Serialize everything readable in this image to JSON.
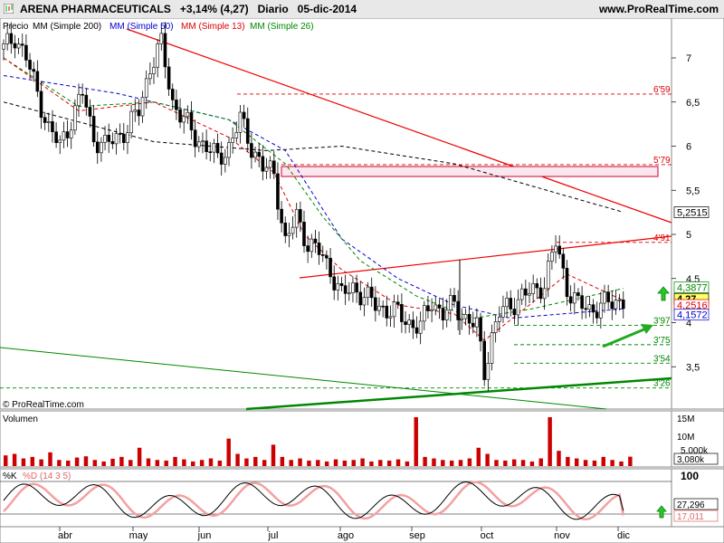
{
  "header": {
    "ticker": "ARENA PHARMACEUTICALS",
    "change": "+3,14% (4,27)",
    "period": "Diario",
    "date": "05-dic-2014",
    "site": "www.ProRealTime.com"
  },
  "price_panel": {
    "legend": [
      {
        "label": "Precio",
        "color": "#000000"
      },
      {
        "label": "MM (Simple 200)",
        "color": "#000000"
      },
      {
        "label": "MM (Simple 50)",
        "color": "#0000cc"
      },
      {
        "label": "MM (Simple 13)",
        "color": "#dd0000"
      },
      {
        "label": "MM (Simple 26)",
        "color": "#008800"
      }
    ],
    "copyright": "© ProRealTime.com",
    "y_ticks": [
      "7",
      "6,5",
      "6",
      "5,5",
      "5",
      "4,5",
      "4",
      "3,5"
    ],
    "levels": [
      {
        "label": "6'59",
        "value": 6.59
      },
      {
        "label": "5'79",
        "value": 5.79
      },
      {
        "label": "4'91",
        "value": 4.91
      },
      {
        "label": "3'97",
        "value": 3.97
      },
      {
        "label": "3'75",
        "value": 3.75
      },
      {
        "label": "3'54",
        "value": 3.54
      },
      {
        "label": "3'26",
        "value": 3.26
      }
    ],
    "value_tags": [
      {
        "text": "5,2515",
        "value": 5.2515,
        "color": "#000000",
        "bg": "#ffffff"
      },
      {
        "text": "4,3877",
        "value": 4.3877,
        "color": "#008800",
        "bg": "#ffffff"
      },
      {
        "text": "4,27",
        "value": 4.27,
        "color": "#000000",
        "bg": "#ffff66"
      },
      {
        "text": "4,2516",
        "value": 4.2516,
        "color": "#dd0000",
        "bg": "#ffffff"
      },
      {
        "text": "4,1572",
        "value": 4.1572,
        "color": "#0000cc",
        "bg": "#ffffff"
      }
    ]
  },
  "volume_panel": {
    "label": "Volumen",
    "y_ticks": [
      "15M",
      "10M",
      "5,000k"
    ],
    "last_tag": "3,080k"
  },
  "stoch_panel": {
    "label_k": "%K",
    "label_d": "%D (14 3 5)",
    "y_ticks": [
      "100"
    ],
    "tag_k": "27,296",
    "tag_d": "17,011"
  },
  "x_labels": [
    "abr",
    "may",
    "jun",
    "jul",
    "ago",
    "sep",
    "oct",
    "nov",
    "dic"
  ],
  "colors": {
    "up": "#ffffff",
    "down": "#000000",
    "sma200": "#000000",
    "sma50": "#0000cc",
    "sma13": "#dd0000",
    "sma26": "#008800",
    "trend_red": "#ee0000",
    "trend_green": "#008800",
    "volume_bar": "#cc0000",
    "arrow_green": "#22aa22"
  },
  "chart_data": {
    "type": "candlestick",
    "title": "ARENA PHARMACEUTICALS",
    "period": "Diario",
    "last_close": 4.27,
    "change_pct": 3.14,
    "y_range": [
      3.2,
      7.4
    ],
    "log_scale": false,
    "months": [
      "abr",
      "may",
      "jun",
      "jul",
      "ago",
      "sep",
      "oct",
      "nov",
      "dic"
    ],
    "close_path": [
      [
        0,
        7.1
      ],
      [
        3,
        7.25
      ],
      [
        6,
        7.0
      ],
      [
        9,
        6.6
      ],
      [
        12,
        6.2
      ],
      [
        15,
        6.0
      ],
      [
        18,
        6.3
      ],
      [
        21,
        6.6
      ],
      [
        24,
        6.1
      ],
      [
        27,
        6.0
      ],
      [
        30,
        6.1
      ],
      [
        33,
        6.2
      ],
      [
        36,
        6.4
      ],
      [
        39,
        6.9
      ],
      [
        42,
        7.15
      ],
      [
        45,
        6.5
      ],
      [
        48,
        6.3
      ],
      [
        51,
        6.1
      ],
      [
        54,
        6.0
      ],
      [
        57,
        5.85
      ],
      [
        60,
        6.0
      ],
      [
        63,
        6.3
      ],
      [
        66,
        6.0
      ],
      [
        69,
        5.75
      ],
      [
        72,
        5.7
      ],
      [
        75,
        4.9
      ],
      [
        78,
        5.2
      ],
      [
        81,
        4.9
      ],
      [
        84,
        4.8
      ],
      [
        87,
        4.6
      ],
      [
        90,
        4.3
      ],
      [
        93,
        4.4
      ],
      [
        96,
        4.3
      ],
      [
        99,
        4.2
      ],
      [
        102,
        4.15
      ],
      [
        105,
        4.1
      ],
      [
        108,
        4.0
      ],
      [
        111,
        3.95
      ],
      [
        114,
        4.25
      ],
      [
        117,
        4.1
      ],
      [
        120,
        4.2
      ],
      [
        123,
        4.05
      ],
      [
        126,
        3.95
      ],
      [
        128,
        3.45
      ],
      [
        130,
        3.85
      ],
      [
        132,
        4.1
      ],
      [
        135,
        4.2
      ],
      [
        138,
        4.3
      ],
      [
        141,
        4.35
      ],
      [
        144,
        4.45
      ],
      [
        147,
        4.9
      ],
      [
        150,
        4.4
      ],
      [
        153,
        4.2
      ],
      [
        156,
        4.15
      ],
      [
        159,
        4.2
      ],
      [
        162,
        4.22
      ],
      [
        165,
        4.27
      ]
    ],
    "sma200": [
      [
        0,
        6.5
      ],
      [
        40,
        6.05
      ],
      [
        70,
        5.95
      ],
      [
        90,
        6.0
      ],
      [
        120,
        5.8
      ],
      [
        165,
        5.2515
      ]
    ],
    "sma50": [
      [
        0,
        6.8
      ],
      [
        30,
        6.6
      ],
      [
        60,
        6.3
      ],
      [
        75,
        5.95
      ],
      [
        90,
        4.95
      ],
      [
        105,
        4.5
      ],
      [
        120,
        4.2
      ],
      [
        135,
        4.05
      ],
      [
        165,
        4.1572
      ]
    ],
    "sma13": [
      [
        0,
        7.0
      ],
      [
        20,
        6.4
      ],
      [
        40,
        6.5
      ],
      [
        60,
        6.1
      ],
      [
        72,
        5.7
      ],
      [
        80,
        5.0
      ],
      [
        90,
        4.6
      ],
      [
        105,
        4.2
      ],
      [
        120,
        4.1
      ],
      [
        128,
        3.8
      ],
      [
        140,
        4.2
      ],
      [
        150,
        4.55
      ],
      [
        165,
        4.2516
      ]
    ],
    "sma26": [
      [
        0,
        7.0
      ],
      [
        20,
        6.45
      ],
      [
        40,
        6.5
      ],
      [
        60,
        6.3
      ],
      [
        75,
        5.8
      ],
      [
        85,
        5.2
      ],
      [
        95,
        4.7
      ],
      [
        110,
        4.3
      ],
      [
        125,
        4.05
      ],
      [
        140,
        4.15
      ],
      [
        165,
        4.3877
      ]
    ],
    "volume_millions": [
      3.5,
      4.0,
      2.5,
      3.0,
      2.2,
      4.5,
      2.0,
      1.8,
      2.8,
      3.2,
      2.0,
      1.5,
      2.4,
      3.0,
      2.0,
      6.0,
      2.5,
      2.0,
      1.8,
      3.0,
      2.2,
      1.5,
      2.0,
      2.5,
      1.8,
      9.0,
      4.0,
      2.5,
      3.0,
      2.0,
      7.0,
      3.0,
      2.0,
      2.5,
      1.8,
      2.0,
      1.5,
      2.2,
      1.8,
      2.0,
      2.5,
      1.5,
      2.0,
      1.8,
      2.2,
      1.5,
      16.0,
      3.0,
      2.5,
      2.0,
      1.8,
      2.0,
      2.5,
      6.0,
      4.0,
      2.0,
      1.8,
      2.2,
      2.0,
      1.5,
      2.5,
      16.0,
      5.0,
      3.0,
      2.5,
      2.0,
      1.8,
      3.0,
      2.0,
      1.5,
      3.08
    ],
    "volume_range": [
      0,
      16
    ],
    "stochastic": {
      "params": "14 3 5",
      "k_last": 27.296,
      "d_last": 17.011,
      "range": [
        0,
        100
      ]
    }
  }
}
